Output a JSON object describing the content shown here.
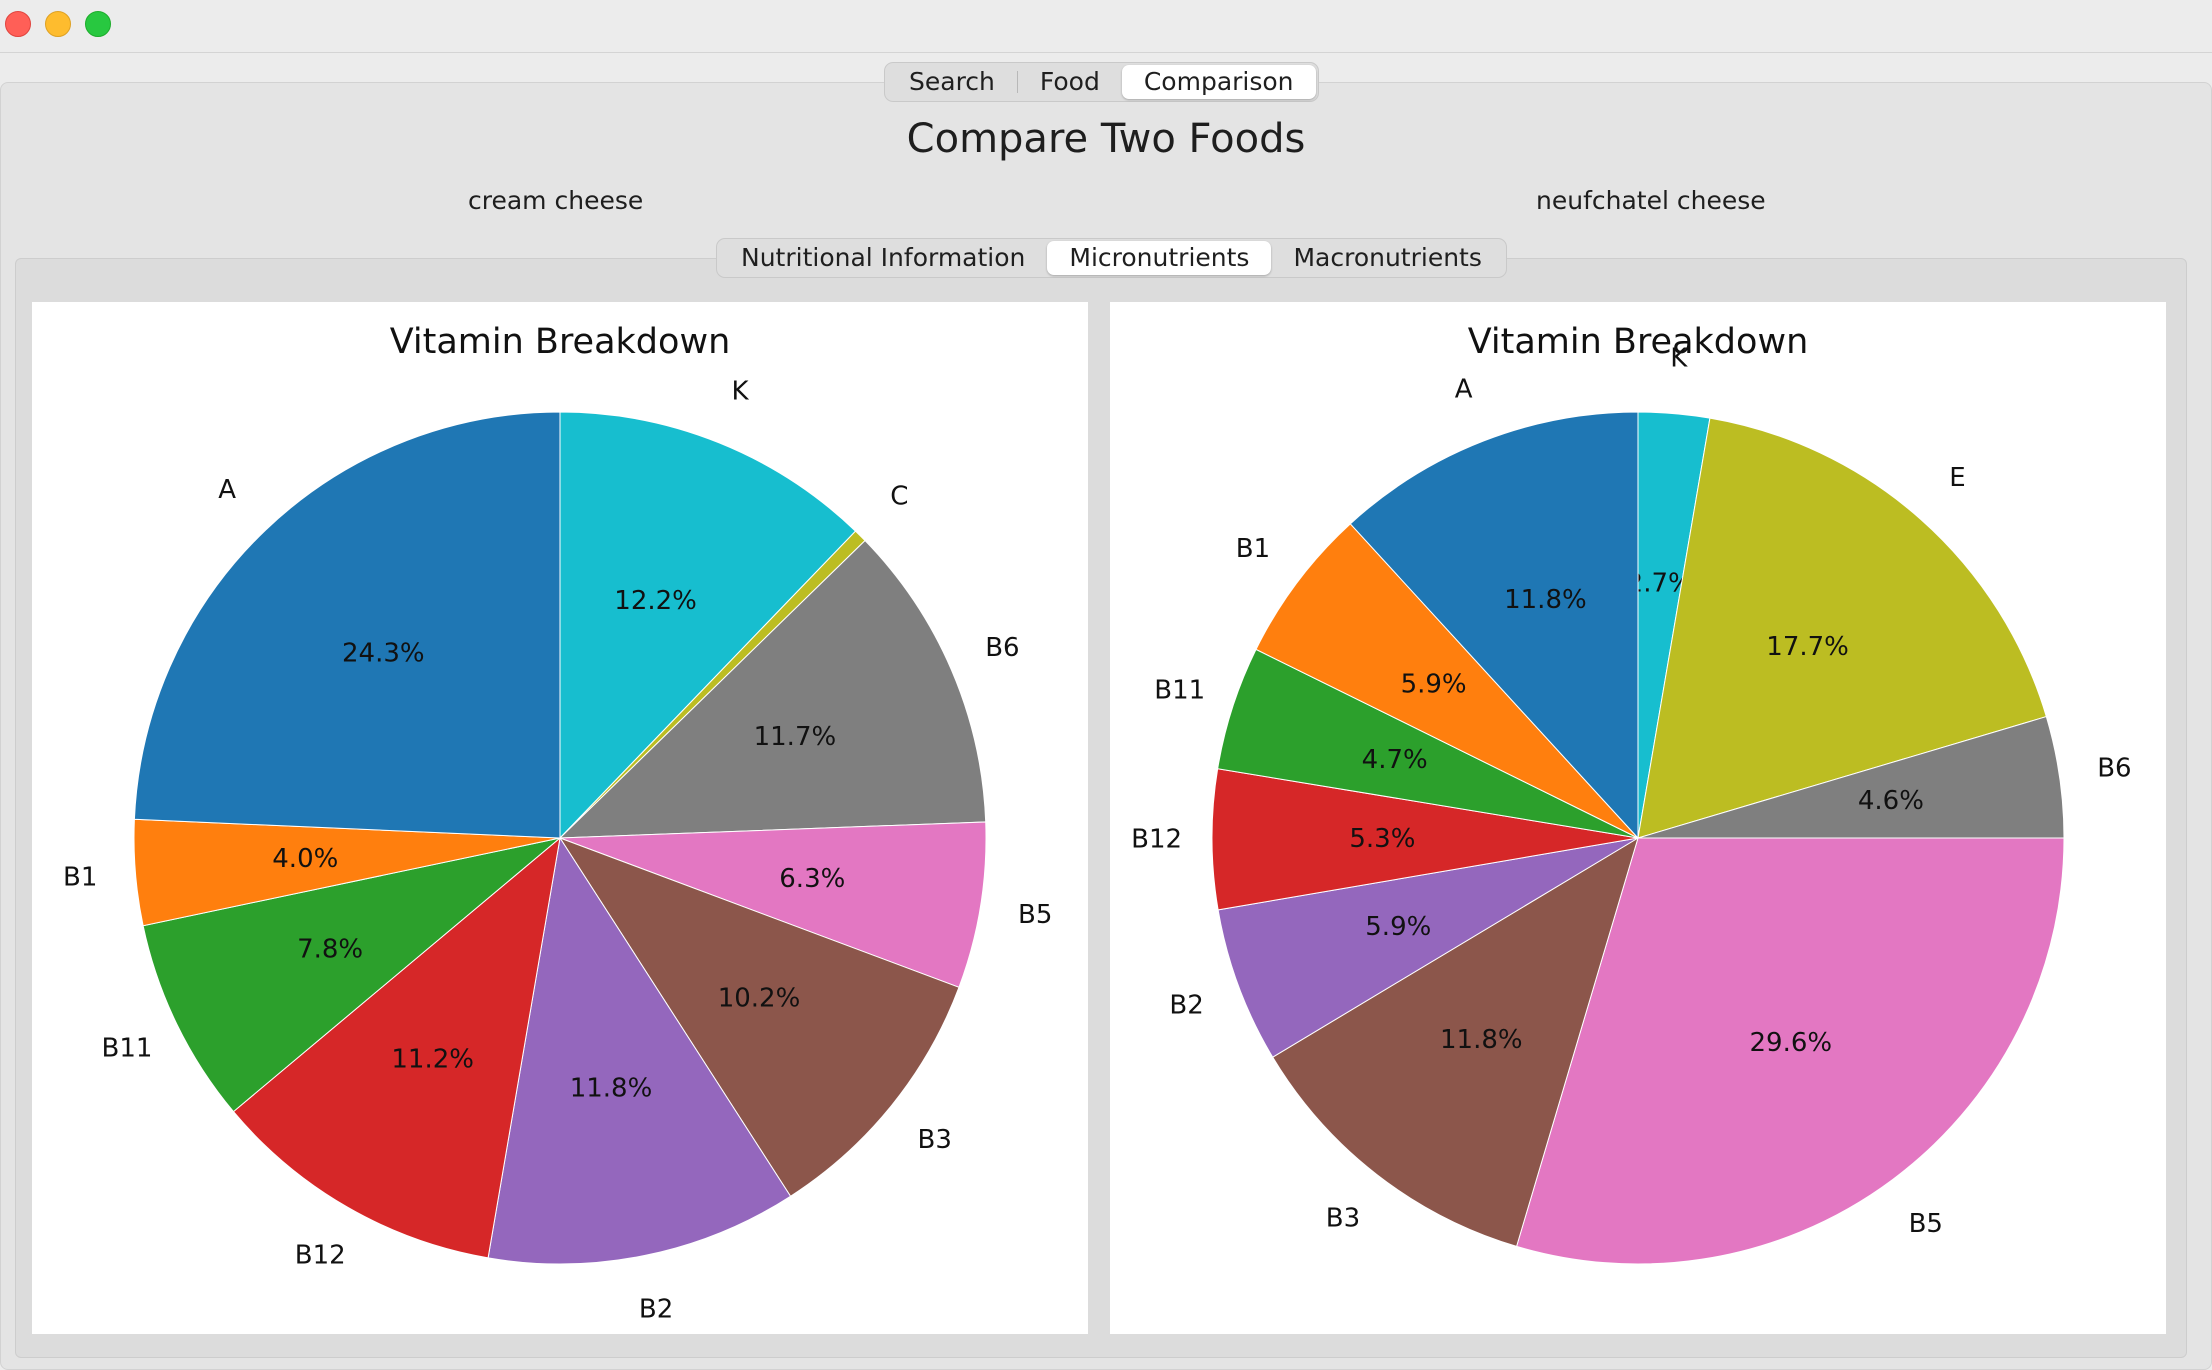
{
  "tabs": [
    "Search",
    "Food",
    "Comparison"
  ],
  "active_tab": 2,
  "page_title": "Compare Two Foods",
  "foods": {
    "left": "cream cheese",
    "right": "neufchatel cheese"
  },
  "subtabs": [
    "Nutritional Information",
    "Micronutrients",
    "Macronutrients"
  ],
  "active_subtab": 1,
  "chart_data": [
    {
      "type": "pie",
      "title": "Vitamin Breakdown",
      "labels": [
        "K",
        "C",
        "B6",
        "B5",
        "B3",
        "B2",
        "B12",
        "B11",
        "B1",
        "A"
      ],
      "values": [
        12.2,
        0.5,
        11.7,
        6.3,
        10.2,
        11.8,
        11.2,
        7.8,
        4.0,
        24.3
      ],
      "autopct": [
        "12.2%",
        "",
        "11.7%",
        "6.3%",
        "10.2%",
        "11.8%",
        "11.2%",
        "7.8%",
        "4.0%",
        "24.3%"
      ],
      "colors": [
        "#17becf",
        "#bcbd22",
        "#7f7f7f",
        "#e377c2",
        "#8c564b",
        "#9467bd",
        "#d62728",
        "#2ca02c",
        "#ff7f0e",
        "#1f77b4"
      ],
      "start_angle": 90,
      "direction": "clockwise"
    },
    {
      "type": "pie",
      "title": "Vitamin Breakdown",
      "labels": [
        "K",
        "E",
        "B6",
        "B5",
        "B3",
        "B2",
        "B12",
        "B11",
        "B1",
        "A"
      ],
      "values": [
        2.7,
        17.7,
        4.6,
        29.6,
        11.8,
        5.9,
        5.3,
        4.7,
        5.9,
        11.8
      ],
      "autopct": [
        "2.7%",
        "17.7%",
        "4.6%",
        "29.6%",
        "11.8%",
        "5.9%",
        "5.3%",
        "4.7%",
        "5.9%",
        "11.8%"
      ],
      "colors": [
        "#17becf",
        "#bcbd22",
        "#7f7f7f",
        "#e377c2",
        "#8c564b",
        "#9467bd",
        "#d62728",
        "#2ca02c",
        "#ff7f0e",
        "#1f77b4"
      ],
      "start_angle": 90,
      "direction": "clockwise"
    }
  ]
}
